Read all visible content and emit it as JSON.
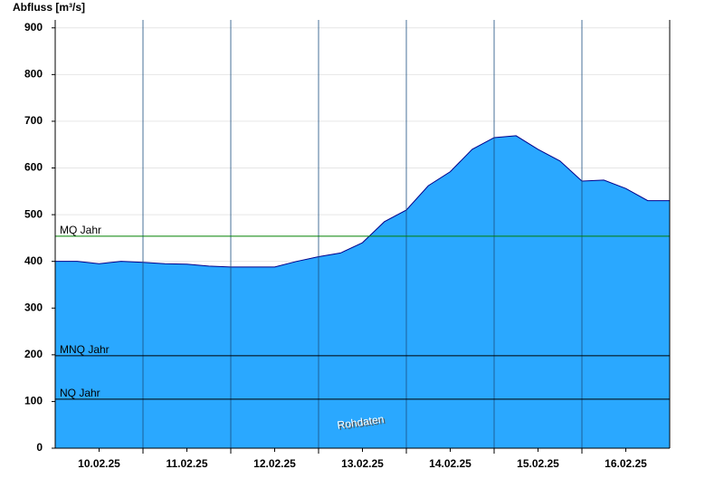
{
  "chart_data": {
    "type": "area",
    "ylabel": "Abfluss [m³/s]",
    "color": "#2aa8ff",
    "line_color": "#00008b",
    "x": [
      "2025-02-10T00:00",
      "2025-02-10T06:00",
      "2025-02-10T12:00",
      "2025-02-10T18:00",
      "2025-02-11T00:00",
      "2025-02-11T06:00",
      "2025-02-11T12:00",
      "2025-02-11T18:00",
      "2025-02-12T00:00",
      "2025-02-12T06:00",
      "2025-02-12T12:00",
      "2025-02-12T18:00",
      "2025-02-13T00:00",
      "2025-02-13T06:00",
      "2025-02-13T12:00",
      "2025-02-13T18:00",
      "2025-02-14T00:00",
      "2025-02-14T06:00",
      "2025-02-14T12:00",
      "2025-02-14T18:00",
      "2025-02-15T00:00",
      "2025-02-15T06:00",
      "2025-02-15T12:00",
      "2025-02-15T18:00",
      "2025-02-16T00:00",
      "2025-02-16T06:00",
      "2025-02-16T12:00",
      "2025-02-16T18:00",
      "2025-02-17T00:00"
    ],
    "values": [
      400,
      400,
      395,
      400,
      398,
      395,
      394,
      390,
      388,
      388,
      388,
      400,
      410,
      418,
      440,
      485,
      510,
      562,
      592,
      640,
      665,
      669,
      640,
      615,
      572,
      574,
      556,
      530,
      530
    ],
    "xlim": [
      "2025-02-10T00:00",
      "2025-02-17T00:00"
    ],
    "xticks": [
      {
        "value": "2025-02-10T12:00",
        "label": "10.02.25"
      },
      {
        "value": "2025-02-11T12:00",
        "label": "11.02.25"
      },
      {
        "value": "2025-02-12T12:00",
        "label": "12.02.25"
      },
      {
        "value": "2025-02-13T12:00",
        "label": "13.02.25"
      },
      {
        "value": "2025-02-14T12:00",
        "label": "14.02.25"
      },
      {
        "value": "2025-02-15T12:00",
        "label": "15.02.25"
      },
      {
        "value": "2025-02-16T12:00",
        "label": "16.02.25"
      }
    ],
    "xgrid": [
      "2025-02-11T00:00",
      "2025-02-12T00:00",
      "2025-02-13T00:00",
      "2025-02-14T00:00",
      "2025-02-15T00:00",
      "2025-02-16T00:00"
    ],
    "ylim": [
      0,
      917
    ],
    "yticks": [
      0,
      100,
      200,
      300,
      400,
      500,
      600,
      700,
      800,
      900
    ],
    "grid": true,
    "reference_lines": [
      {
        "label": "MQ Jahr",
        "value": 454,
        "color": "#008000"
      },
      {
        "label": "MNQ Jahr",
        "value": 198,
        "color": "#000000"
      },
      {
        "label": "NQ Jahr",
        "value": 105,
        "color": "#000000"
      }
    ],
    "annotation": "Rohdaten"
  }
}
